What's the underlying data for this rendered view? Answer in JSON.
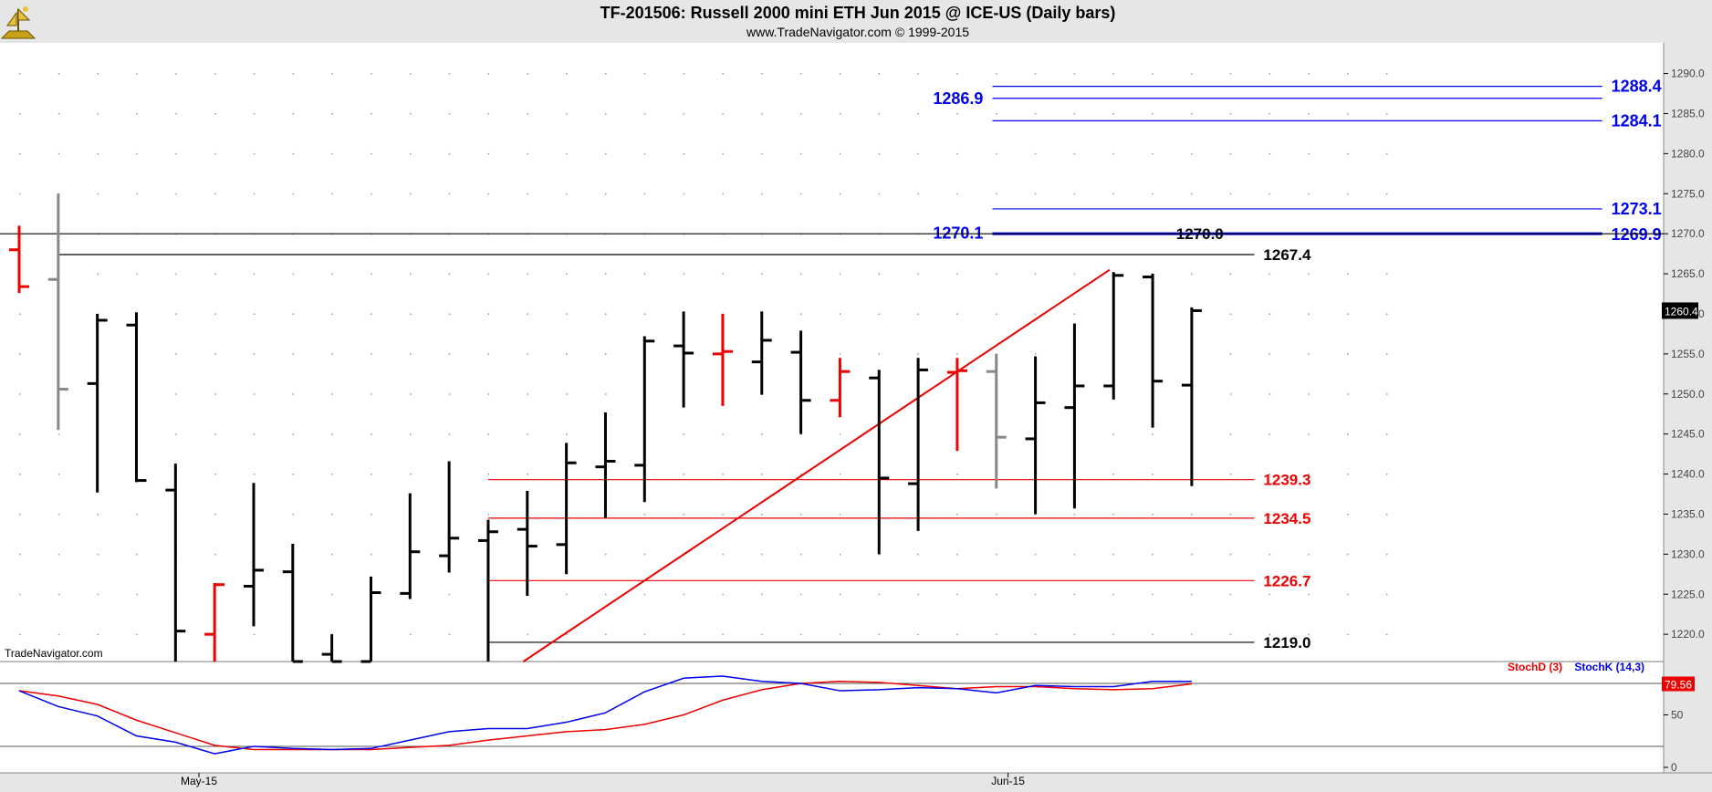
{
  "header": {
    "title": "TF-201506:  Russell 2000 mini ETH Jun 2015 @ ICE-US  (Daily bars)",
    "subtitle": "www.TradeNavigator.com © 1999-2015",
    "watermark": "TradeNavigator.com",
    "logo_icon": "trade-navigator-logo"
  },
  "chart_data": [
    {
      "type": "ohlc",
      "name": "price",
      "x_labels": [
        {
          "index": 4.6,
          "label": "May-15"
        },
        {
          "index": 25.3,
          "label": "Jun-15"
        }
      ],
      "y_ticks": [
        1220,
        1225,
        1230,
        1235,
        1240,
        1245,
        1250,
        1255,
        1260,
        1265,
        1270,
        1275,
        1280,
        1285,
        1290
      ],
      "ylim": [
        1216.6,
        1291.5
      ],
      "last_price": "1260.4",
      "bars": [
        {
          "o": 1268.0,
          "h": 1271.0,
          "l": 1262.6,
          "c": 1263.4,
          "color": "red"
        },
        {
          "o": 1264.3,
          "h": 1275.0,
          "l": 1245.5,
          "c": 1250.6,
          "color": "gray"
        },
        {
          "o": 1251.3,
          "h": 1260.0,
          "l": 1237.7,
          "c": 1259.2,
          "color": "black"
        },
        {
          "o": 1258.6,
          "h": 1260.2,
          "l": 1239.0,
          "c": 1239.2,
          "color": "black"
        },
        {
          "o": 1238.0,
          "h": 1241.3,
          "l": 1216.6,
          "c": 1220.4,
          "color": "black"
        },
        {
          "o": 1220.0,
          "h": 1226.4,
          "l": 1216.6,
          "c": 1226.2,
          "color": "red"
        },
        {
          "o": 1226.0,
          "h": 1238.9,
          "l": 1221.0,
          "c": 1228.0,
          "color": "black"
        },
        {
          "o": 1227.8,
          "h": 1231.3,
          "l": 1216.6,
          "c": 1216.6,
          "color": "black"
        },
        {
          "o": 1217.5,
          "h": 1220.0,
          "l": 1216.6,
          "c": 1216.6,
          "color": "black"
        },
        {
          "o": 1216.6,
          "h": 1227.2,
          "l": 1216.6,
          "c": 1225.2,
          "color": "black"
        },
        {
          "o": 1225.1,
          "h": 1237.6,
          "l": 1224.4,
          "c": 1230.3,
          "color": "black"
        },
        {
          "o": 1229.8,
          "h": 1241.6,
          "l": 1227.7,
          "c": 1232.0,
          "color": "black"
        },
        {
          "o": 1231.7,
          "h": 1234.3,
          "l": 1216.6,
          "c": 1232.8,
          "color": "black"
        },
        {
          "o": 1233.1,
          "h": 1237.9,
          "l": 1224.8,
          "c": 1231.0,
          "color": "black"
        },
        {
          "o": 1231.2,
          "h": 1243.9,
          "l": 1227.5,
          "c": 1241.4,
          "color": "black"
        },
        {
          "o": 1240.9,
          "h": 1247.7,
          "l": 1234.5,
          "c": 1241.6,
          "color": "black"
        },
        {
          "o": 1241.1,
          "h": 1257.2,
          "l": 1236.5,
          "c": 1256.6,
          "color": "black"
        },
        {
          "o": 1256.0,
          "h": 1260.3,
          "l": 1248.3,
          "c": 1255.1,
          "color": "black"
        },
        {
          "o": 1255.0,
          "h": 1260.0,
          "l": 1248.5,
          "c": 1255.3,
          "color": "red"
        },
        {
          "o": 1254.0,
          "h": 1260.3,
          "l": 1249.9,
          "c": 1256.7,
          "color": "black"
        },
        {
          "o": 1255.2,
          "h": 1257.9,
          "l": 1245.0,
          "c": 1249.2,
          "color": "black"
        },
        {
          "o": 1249.2,
          "h": 1254.5,
          "l": 1247.1,
          "c": 1252.8,
          "color": "red"
        },
        {
          "o": 1252.0,
          "h": 1253.0,
          "l": 1230.0,
          "c": 1239.5,
          "color": "black"
        },
        {
          "o": 1238.8,
          "h": 1254.5,
          "l": 1232.9,
          "c": 1253.0,
          "color": "black"
        },
        {
          "o": 1252.7,
          "h": 1254.5,
          "l": 1242.9,
          "c": 1252.9,
          "color": "red"
        },
        {
          "o": 1252.8,
          "h": 1255.0,
          "l": 1238.2,
          "c": 1244.6,
          "color": "gray"
        },
        {
          "o": 1244.4,
          "h": 1254.7,
          "l": 1235.0,
          "c": 1248.9,
          "color": "black"
        },
        {
          "o": 1248.3,
          "h": 1258.8,
          "l": 1235.7,
          "c": 1251.0,
          "color": "black"
        },
        {
          "o": 1251.0,
          "h": 1265.2,
          "l": 1249.3,
          "c": 1264.8,
          "color": "black"
        },
        {
          "o": 1264.6,
          "h": 1265.0,
          "l": 1245.8,
          "c": 1251.6,
          "color": "black"
        },
        {
          "o": 1251.1,
          "h": 1260.8,
          "l": 1238.5,
          "c": 1260.4,
          "color": "black"
        }
      ],
      "levels": [
        {
          "value": 1288.4,
          "label": "1288.4",
          "color": "#0000ee",
          "from": 24.9,
          "to": 40.5,
          "label_side": "right"
        },
        {
          "value": 1286.9,
          "label": "1286.9",
          "color": "#0000ee",
          "from": 24.9,
          "to": 40.5,
          "label_side": "left"
        },
        {
          "value": 1284.1,
          "label": "1284.1",
          "color": "#0000ee",
          "from": 24.9,
          "to": 40.5,
          "label_side": "right"
        },
        {
          "value": 1273.1,
          "label": "1273.1",
          "color": "#0000ee",
          "from": 24.9,
          "to": 40.5,
          "label_side": "right"
        },
        {
          "value": 1270.1,
          "label": "1270.1",
          "color": "#0000ee",
          "from": 24.9,
          "to": 40.5,
          "label_side": "left"
        },
        {
          "value": 1269.9,
          "label": "1269.9",
          "color": "#0000ee",
          "from": 24.9,
          "to": 40.5,
          "label_side": "right"
        },
        {
          "value": 1270.0,
          "label": "1270.0",
          "color": "#000000",
          "from": -0.6,
          "to": 42.5,
          "label_side": "mid"
        },
        {
          "value": 1267.4,
          "label": "1267.4",
          "color": "#000000",
          "from": 1.0,
          "to": 31.6,
          "label_side": "right"
        },
        {
          "value": 1239.3,
          "label": "1239.3",
          "color": "#ee0000",
          "from": 12.0,
          "to": 31.6,
          "label_side": "right"
        },
        {
          "value": 1234.5,
          "label": "1234.5",
          "color": "#ee0000",
          "from": 12.0,
          "to": 31.6,
          "label_side": "right"
        },
        {
          "value": 1226.7,
          "label": "1226.7",
          "color": "#ee0000",
          "from": 12.0,
          "to": 31.6,
          "label_side": "right"
        },
        {
          "value": 1219.0,
          "label": "1219.0",
          "color": "#000000",
          "from": 12.0,
          "to": 31.6,
          "label_side": "right"
        }
      ],
      "trendline": {
        "from": [
          12.9,
          1216.6
        ],
        "to": [
          27.9,
          1265.5
        ],
        "color": "#ee0000"
      }
    },
    {
      "type": "line",
      "name": "stochastic",
      "ylim": [
        0,
        100
      ],
      "y_ticks": [
        0,
        50
      ],
      "reference_lines": [
        20,
        80
      ],
      "last_value": "79.56",
      "series": [
        {
          "name": "StochD (3)",
          "color": "#ee0000",
          "values": [
            73,
            68,
            60,
            45,
            33,
            21,
            17,
            17,
            17,
            17,
            19,
            21,
            26,
            30,
            34,
            36,
            41,
            50,
            64,
            74,
            80,
            82,
            81,
            78,
            75,
            77,
            77,
            75,
            74,
            75,
            79.56
          ]
        },
        {
          "name": "StochK (14,3)",
          "color": "#0000ee",
          "values": [
            73,
            58,
            49,
            30,
            24,
            13,
            20,
            18,
            17,
            18,
            26,
            34,
            37,
            37,
            43,
            52,
            72,
            85,
            87,
            82,
            80,
            73,
            74,
            76,
            75,
            71,
            78,
            77,
            77,
            82,
            82
          ]
        }
      ]
    }
  ]
}
